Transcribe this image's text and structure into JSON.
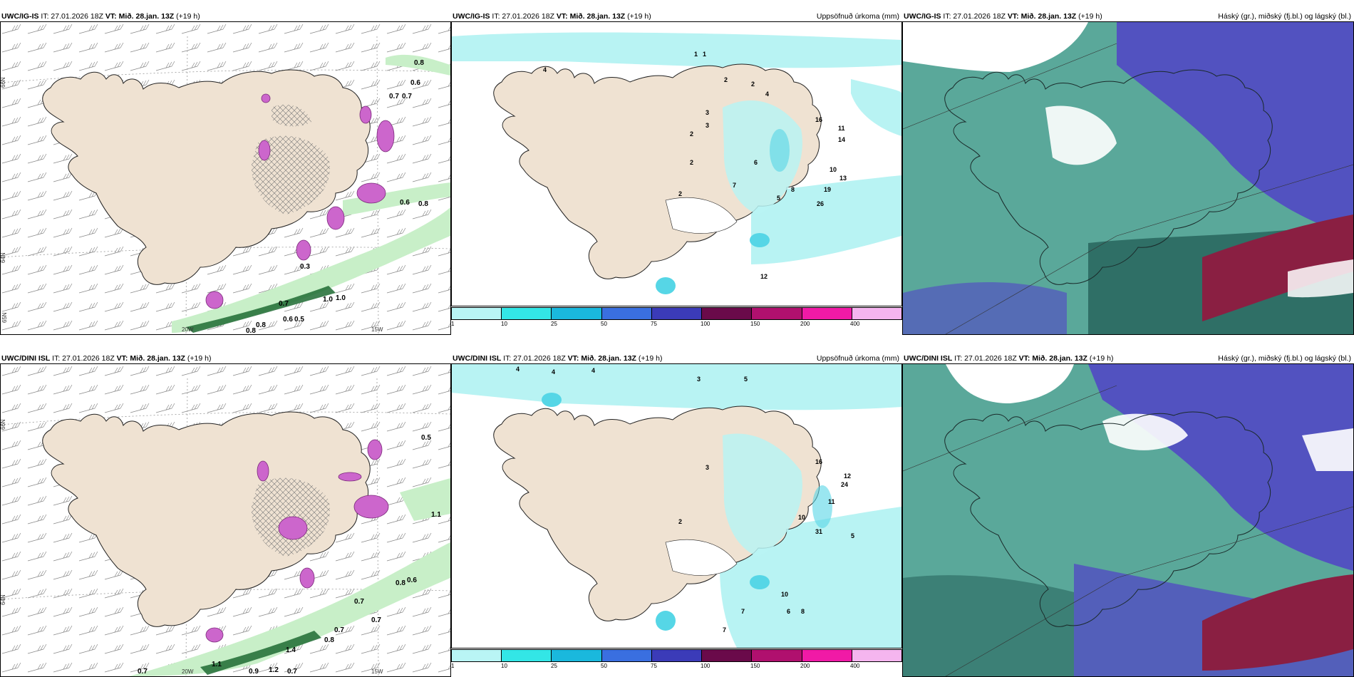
{
  "colors": {
    "land": "#efe2d2",
    "sea": "#ffffff",
    "precip_light": "#b8f3f3",
    "precip_teal": "#56d6e6",
    "snow_purple": "#cc66cc",
    "rain_green_light": "#c8efc8",
    "rain_green_dark": "#1f6b33",
    "cloud_high_green": "#5aa89a",
    "cloud_mid_blue": "#5252c0",
    "cloud_dark_teal": "#2f6f66",
    "cloud_low_red": "#8a1f42",
    "cloud_white": "#ffffff"
  },
  "panels": {
    "p1": {
      "model": "UWC/IG-IS",
      "it": "IT: 27.01.2026 18Z",
      "vt": "VT: Mið. 28.jan. 13Z",
      "lead": "(+19 h)",
      "product": ""
    },
    "p2": {
      "model": "UWC/IG-IS",
      "it": "IT: 27.01.2026 18Z",
      "vt": "VT: Mið. 28.jan. 13Z",
      "lead": "(+19 h)",
      "product": "Uppsöfnuð úrkoma (mm)"
    },
    "p3": {
      "model": "UWC/IG-IS",
      "it": "IT: 27.01.2026 18Z",
      "vt": "VT: Mið. 28.jan. 13Z",
      "lead": "(+19 h)",
      "product": "Háský (gr.), miðský (fj.bl.) og lágský (bl.)"
    },
    "p4": {
      "model": "UWC/DINI ISL",
      "it": "IT: 27.01.2026 18Z",
      "vt": "VT: Mið. 28.jan. 13Z",
      "lead": "(+19 h)",
      "product": ""
    },
    "p5": {
      "model": "UWC/DINI ISL",
      "it": "IT: 27.01.2026 18Z",
      "vt": "VT: Mið. 28.jan. 13Z",
      "lead": "(+19 h)",
      "product": "Uppsöfnuð úrkoma (mm)"
    },
    "p6": {
      "model": "UWC/DINI ISL",
      "it": "IT: 27.01.2026 18Z",
      "vt": "VT: Mið. 28.jan. 13Z",
      "lead": "(+19 h)",
      "product": "Háský (gr.), miðský (fj.bl.) og lágský (bl.)"
    }
  },
  "axis_labels": {
    "lat66": "66N",
    "lat64": "64N",
    "lat65": "65N",
    "lon20": "20W",
    "lon15": "15W"
  },
  "scale": {
    "ticks": [
      "1",
      "10",
      "25",
      "50",
      "75",
      "100",
      "150",
      "200",
      "400"
    ],
    "colors": [
      "#b9f5f5",
      "#33e6e6",
      "#1ab8dd",
      "#3a6fe0",
      "#3b3bb8",
      "#6a0a4a",
      "#b0106e",
      "#f01aa6",
      "#f5b5ef"
    ]
  },
  "labels_top_left": [
    "0.8",
    "0.6",
    "0.7",
    "0.7",
    "0.6",
    "0.8",
    "1.0",
    "1.0",
    "0.5",
    "0.6",
    "0.8",
    "0.8",
    "0.7",
    "0.3"
  ],
  "labels_bottom_left": [
    "0.5",
    "1.1",
    "0.8",
    "0.6",
    "0.7",
    "0.7",
    "0.8",
    "1.4",
    "0.7",
    "1.1",
    "0.9",
    "1.2",
    "0.7",
    "0.7"
  ],
  "labels_top_mid": [
    "1",
    "1",
    "2",
    "2",
    "4",
    "3",
    "3",
    "2",
    "2",
    "16",
    "11",
    "14",
    "10",
    "13",
    "19",
    "26",
    "12",
    "6",
    "8",
    "7",
    "5",
    "2",
    "4"
  ],
  "labels_bottom_mid": [
    "4",
    "4",
    "4",
    "3",
    "5",
    "2",
    "3",
    "16",
    "24",
    "12",
    "10",
    "11",
    "31",
    "5",
    "10",
    "8",
    "7",
    "6",
    "7"
  ]
}
